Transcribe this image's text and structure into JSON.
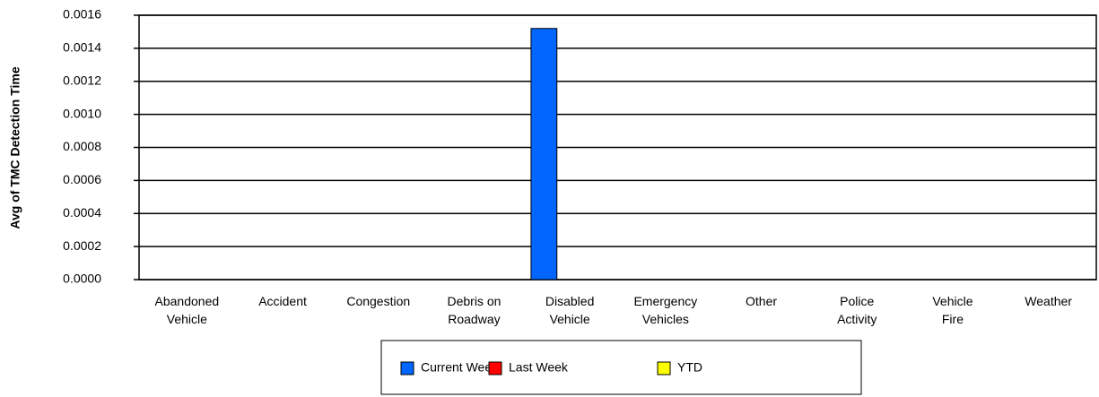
{
  "chart_data": {
    "type": "bar",
    "y_label": "Avg of TMC Detection Time",
    "categories": [
      "Abandoned\nVehicle",
      "Accident",
      "Congestion",
      "Debris on\nRoadway",
      "Disabled\nVehicle",
      "Emergency\nVehicles",
      "Other",
      "Police\nActivity",
      "Vehicle\nFire",
      "Weather"
    ],
    "series": [
      {
        "name": "Current Week",
        "color": "#0066ff",
        "values": [
          0,
          0,
          0,
          0,
          0.00152,
          0,
          0,
          0,
          0,
          0
        ]
      },
      {
        "name": "Last Week",
        "color": "#ff0000",
        "values": [
          0,
          0,
          0,
          0,
          0,
          0,
          0,
          0,
          0,
          0
        ]
      },
      {
        "name": "YTD",
        "color": "#ffff00",
        "values": [
          0,
          0,
          0,
          0,
          0,
          0,
          0,
          0,
          0,
          0
        ]
      }
    ],
    "ylim": [
      0,
      0.0016
    ],
    "yticks": [
      {
        "value": 0,
        "label": "0.0000"
      },
      {
        "value": 0.0002,
        "label": "0.0002"
      },
      {
        "value": 0.0004,
        "label": "0.0004"
      },
      {
        "value": 0.0006,
        "label": "0.0006"
      },
      {
        "value": 0.0008,
        "label": "0.0008"
      },
      {
        "value": 0.001,
        "label": "0.0010"
      },
      {
        "value": 0.0012,
        "label": "0.0012"
      },
      {
        "value": 0.0014,
        "label": "0.0014"
      },
      {
        "value": 0.0016,
        "label": "0.0016"
      }
    ],
    "grid": true,
    "legend": "bottom"
  }
}
